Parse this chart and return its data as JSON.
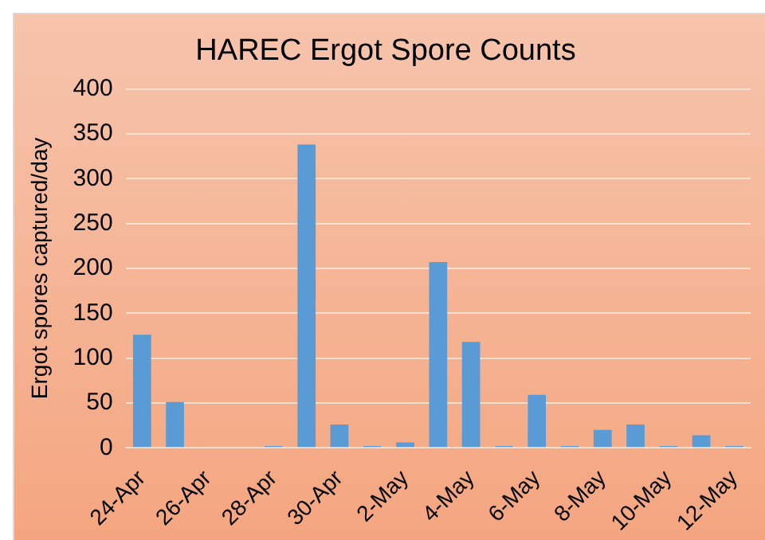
{
  "chart_data": {
    "type": "bar",
    "title": "HAREC Ergot Spore Counts",
    "ylabel": "Ergot spores captured/day",
    "categories": [
      "24-Apr",
      null,
      "26-Apr",
      null,
      "28-Apr",
      null,
      "30-Apr",
      null,
      "2-May",
      null,
      "4-May",
      null,
      "6-May",
      null,
      "8-May",
      null,
      "10-May",
      null,
      "12-May"
    ],
    "values": [
      126,
      51,
      0,
      0,
      2,
      338,
      26,
      2,
      6,
      207,
      118,
      2,
      59,
      2,
      20,
      26,
      2,
      14,
      2
    ],
    "color": "#5b9bd5",
    "ylim": [
      0,
      400
    ],
    "yticks": [
      0,
      50,
      100,
      150,
      200,
      250,
      300,
      350,
      400
    ],
    "grid": "y"
  }
}
